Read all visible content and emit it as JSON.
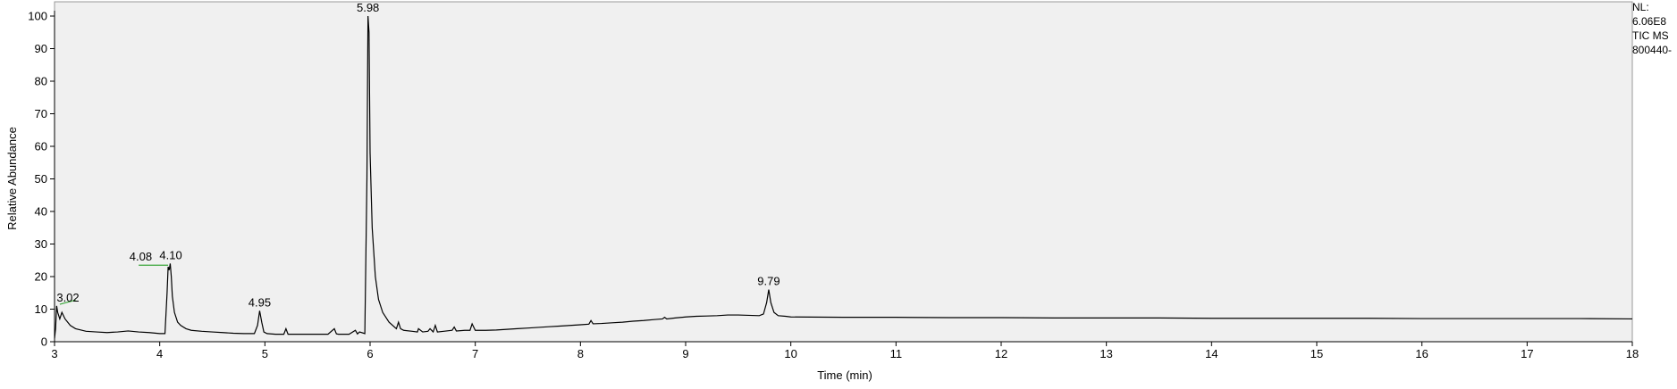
{
  "chart_data": {
    "type": "line",
    "xlabel": "Time (min)",
    "ylabel": "Relative Abundance",
    "xlim": [
      3,
      18
    ],
    "ylim": [
      0,
      100
    ],
    "x_ticks": [
      3,
      4,
      5,
      6,
      7,
      8,
      9,
      10,
      11,
      12,
      13,
      14,
      15,
      16,
      17,
      18
    ],
    "y_ticks": [
      0,
      10,
      20,
      30,
      40,
      50,
      60,
      70,
      80,
      90,
      100
    ],
    "plot_background": "#f0f0f0",
    "line_color": "#000000",
    "baseline_marker_color": "#3aa63a",
    "peak_labels": [
      {
        "x": 3.02,
        "y": 11,
        "text": "3.02"
      },
      {
        "x": 4.08,
        "y": 23.5,
        "text": "4.08"
      },
      {
        "x": 4.1,
        "y": 24,
        "text": "4.10"
      },
      {
        "x": 4.95,
        "y": 9.5,
        "text": "4.95"
      },
      {
        "x": 5.98,
        "y": 100,
        "text": "5.98"
      },
      {
        "x": 9.79,
        "y": 16,
        "text": "9.79"
      }
    ],
    "baseline_markers": [
      {
        "x": [
          3.05,
          3.2
        ],
        "y": [
          11.5,
          12.8
        ]
      },
      {
        "x": [
          3.8,
          4.08
        ],
        "y": [
          23.5,
          23.5
        ]
      }
    ],
    "series": [
      {
        "x": [
          3.0,
          3.01,
          3.02,
          3.03,
          3.05,
          3.07,
          3.1,
          3.15,
          3.2,
          3.3,
          3.4,
          3.5,
          3.6,
          3.7,
          3.8,
          3.9,
          4.0,
          4.05,
          4.07,
          4.08,
          4.09,
          4.1,
          4.11,
          4.12,
          4.14,
          4.17,
          4.2,
          4.25,
          4.3,
          4.4,
          4.5,
          4.6,
          4.7,
          4.8,
          4.9,
          4.93,
          4.95,
          4.97,
          4.99,
          5.02,
          5.1,
          5.18,
          5.2,
          5.22,
          5.3,
          5.4,
          5.5,
          5.6,
          5.66,
          5.68,
          5.7,
          5.8,
          5.86,
          5.88,
          5.9,
          5.95,
          5.97,
          5.98,
          5.99,
          6.0,
          6.02,
          6.05,
          6.08,
          6.12,
          6.18,
          6.25,
          6.27,
          6.29,
          6.32,
          6.4,
          6.45,
          6.46,
          6.5,
          6.55,
          6.57,
          6.6,
          6.62,
          6.64,
          6.7,
          6.78,
          6.8,
          6.82,
          6.9,
          6.95,
          6.97,
          7.0,
          7.1,
          7.2,
          7.25,
          7.3,
          7.4,
          7.5,
          7.6,
          7.7,
          7.8,
          7.9,
          8.0,
          8.08,
          8.1,
          8.12,
          8.2,
          8.3,
          8.4,
          8.5,
          8.6,
          8.7,
          8.78,
          8.8,
          8.82,
          8.9,
          9.0,
          9.1,
          9.2,
          9.3,
          9.4,
          9.5,
          9.6,
          9.7,
          9.74,
          9.77,
          9.79,
          9.81,
          9.84,
          9.88,
          9.95,
          10.0,
          10.5,
          11.0,
          11.5,
          12.0,
          12.5,
          13.0,
          13.5,
          14.0,
          14.5,
          15.0,
          15.5,
          16.0,
          16.5,
          17.0,
          17.5,
          18.0
        ],
        "values": [
          1,
          4,
          11,
          9,
          7,
          9,
          7,
          5,
          4,
          3.2,
          3,
          2.8,
          3,
          3.3,
          3,
          2.8,
          2.5,
          2.5,
          15,
          23,
          22,
          24,
          20,
          14,
          9,
          6,
          5,
          4,
          3.5,
          3.2,
          3,
          2.8,
          2.6,
          2.5,
          2.5,
          5,
          9.5,
          6,
          3,
          2.5,
          2.3,
          2.3,
          4,
          2.3,
          2.3,
          2.3,
          2.3,
          2.3,
          4,
          2.4,
          2.3,
          2.3,
          3.5,
          2.4,
          3,
          2.5,
          50,
          100,
          95,
          58,
          35,
          20,
          13,
          9,
          6,
          4,
          6,
          4,
          3.5,
          3.2,
          3,
          4,
          3,
          3.2,
          4,
          3,
          5,
          3,
          3.2,
          3.5,
          4.5,
          3.3,
          3.5,
          3.5,
          5.5,
          3.5,
          3.5,
          3.6,
          3.7,
          3.8,
          4,
          4.2,
          4.4,
          4.6,
          4.8,
          5,
          5.2,
          5.4,
          6.5,
          5.5,
          5.6,
          5.8,
          6,
          6.3,
          6.5,
          6.8,
          7,
          7.5,
          7,
          7.3,
          7.6,
          7.8,
          7.9,
          8,
          8.2,
          8.2,
          8.1,
          8,
          8.5,
          12,
          16,
          12,
          9,
          8,
          7.8,
          7.6,
          7.5,
          7.5,
          7.4,
          7.4,
          7.3,
          7.3,
          7.3,
          7.2,
          7.2,
          7.2,
          7.2,
          7.1,
          7.1,
          7.1,
          7.1,
          7.0
        ]
      }
    ]
  },
  "info": {
    "line1": "NL:",
    "line2": "6.06E8",
    "line3": "TIC  MS",
    "line4": "800440-"
  }
}
